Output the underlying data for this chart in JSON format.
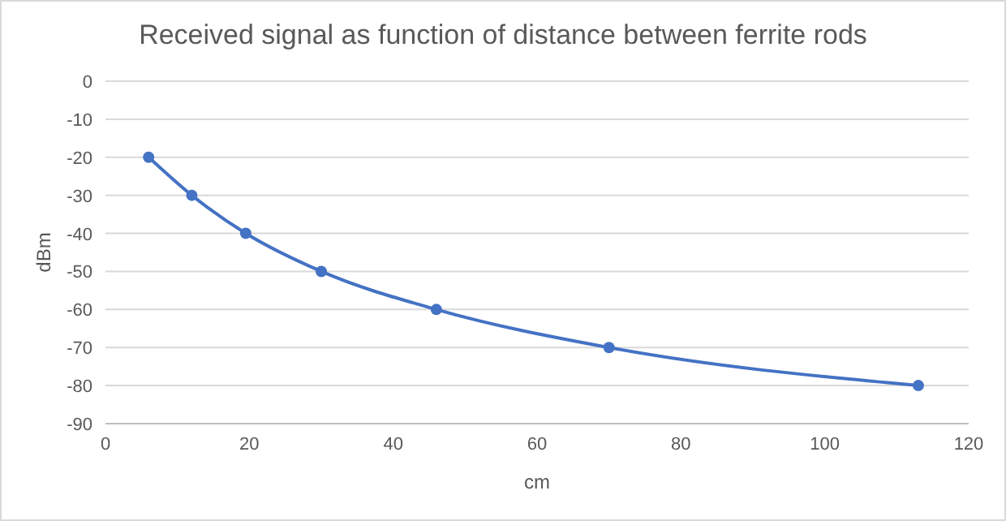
{
  "chart_data": {
    "type": "line",
    "title": "Received signal as function of distance between ferrite rods",
    "xlabel": "cm",
    "ylabel": "dBm",
    "x": [
      6,
      12,
      19.5,
      30,
      46,
      70,
      113
    ],
    "series": [
      {
        "color": "#4472c4",
        "values": [
          -20,
          -30,
          -40,
          -50,
          -60,
          -70,
          -80
        ]
      }
    ],
    "xlim": [
      0,
      120
    ],
    "xticks": [
      0,
      20,
      40,
      60,
      80,
      100,
      120
    ],
    "ylim": [
      -90,
      0
    ],
    "yticks": [
      -90,
      -80,
      -70,
      -60,
      -50,
      -40,
      -30,
      -20,
      -10,
      0
    ],
    "grid": "y",
    "marker": "circle",
    "line_style": "solid"
  }
}
